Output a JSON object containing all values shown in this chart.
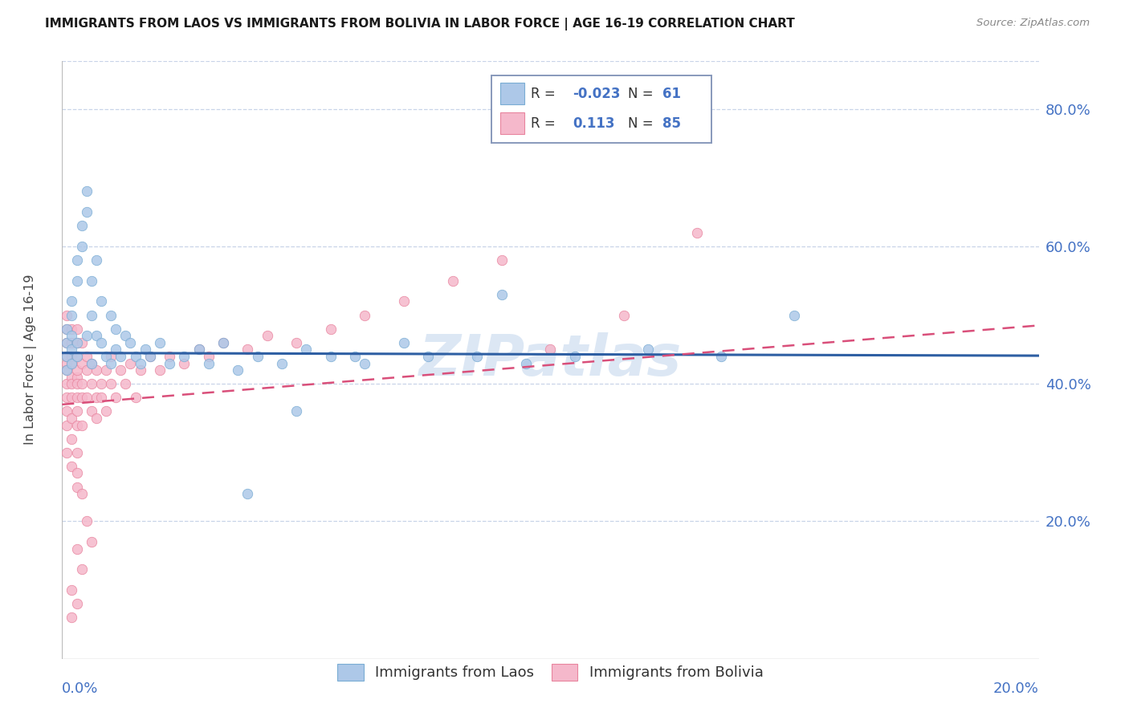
{
  "title": "IMMIGRANTS FROM LAOS VS IMMIGRANTS FROM BOLIVIA IN LABOR FORCE | AGE 16-19 CORRELATION CHART",
  "source": "Source: ZipAtlas.com",
  "ylabel": "In Labor Force | Age 16-19",
  "R1": -0.023,
  "N1": 61,
  "R2": 0.113,
  "N2": 85,
  "color_laos_fill": "#adc8e8",
  "color_laos_edge": "#7aadd4",
  "color_bolivia_fill": "#f5b8cb",
  "color_bolivia_edge": "#e8849e",
  "color_trend_laos": "#2e5fa3",
  "color_trend_bolivia": "#d94f7a",
  "watermark_color": "#c5d8ee",
  "background_color": "#ffffff",
  "grid_color": "#c8d4e8",
  "axis_label_color": "#4472c4",
  "legend_label1": "Immigrants from Laos",
  "legend_label2": "Immigrants from Bolivia",
  "xmin": 0.0,
  "xmax": 0.2,
  "ymin": 0.0,
  "ymax": 0.87,
  "right_yticks": [
    0.2,
    0.4,
    0.6,
    0.8
  ],
  "right_yticklabels": [
    "20.0%",
    "40.0%",
    "60.0%",
    "80.0%"
  ],
  "trend_laos_x0": 0.0,
  "trend_laos_x1": 0.2,
  "trend_laos_y0": 0.445,
  "trend_laos_y1": 0.441,
  "trend_bolivia_x0": 0.0,
  "trend_bolivia_x1": 0.2,
  "trend_bolivia_y0": 0.37,
  "trend_bolivia_y1": 0.485,
  "laos_x": [
    0.001,
    0.001,
    0.001,
    0.001,
    0.002,
    0.002,
    0.002,
    0.002,
    0.002,
    0.003,
    0.003,
    0.003,
    0.003,
    0.004,
    0.004,
    0.005,
    0.005,
    0.005,
    0.006,
    0.006,
    0.006,
    0.007,
    0.007,
    0.008,
    0.008,
    0.009,
    0.01,
    0.01,
    0.011,
    0.011,
    0.012,
    0.013,
    0.014,
    0.015,
    0.016,
    0.017,
    0.018,
    0.02,
    0.022,
    0.025,
    0.028,
    0.03,
    0.033,
    0.036,
    0.04,
    0.045,
    0.05,
    0.055,
    0.062,
    0.07,
    0.075,
    0.085,
    0.095,
    0.105,
    0.12,
    0.135,
    0.15,
    0.09,
    0.06,
    0.048,
    0.038
  ],
  "laos_y": [
    0.44,
    0.46,
    0.42,
    0.48,
    0.5,
    0.43,
    0.47,
    0.45,
    0.52,
    0.44,
    0.55,
    0.58,
    0.46,
    0.6,
    0.63,
    0.47,
    0.65,
    0.68,
    0.5,
    0.55,
    0.43,
    0.58,
    0.47,
    0.52,
    0.46,
    0.44,
    0.5,
    0.43,
    0.48,
    0.45,
    0.44,
    0.47,
    0.46,
    0.44,
    0.43,
    0.45,
    0.44,
    0.46,
    0.43,
    0.44,
    0.45,
    0.43,
    0.46,
    0.42,
    0.44,
    0.43,
    0.45,
    0.44,
    0.43,
    0.46,
    0.44,
    0.44,
    0.43,
    0.44,
    0.45,
    0.44,
    0.5,
    0.53,
    0.44,
    0.36,
    0.24
  ],
  "bolivia_x": [
    0.001,
    0.001,
    0.001,
    0.001,
    0.001,
    0.001,
    0.001,
    0.001,
    0.001,
    0.001,
    0.001,
    0.002,
    0.002,
    0.002,
    0.002,
    0.002,
    0.002,
    0.002,
    0.002,
    0.002,
    0.002,
    0.003,
    0.003,
    0.003,
    0.003,
    0.003,
    0.003,
    0.003,
    0.003,
    0.003,
    0.003,
    0.003,
    0.003,
    0.004,
    0.004,
    0.004,
    0.004,
    0.004,
    0.005,
    0.005,
    0.005,
    0.006,
    0.006,
    0.006,
    0.007,
    0.007,
    0.007,
    0.008,
    0.008,
    0.009,
    0.009,
    0.01,
    0.01,
    0.011,
    0.012,
    0.013,
    0.014,
    0.015,
    0.016,
    0.018,
    0.02,
    0.022,
    0.025,
    0.028,
    0.03,
    0.033,
    0.038,
    0.042,
    0.048,
    0.055,
    0.062,
    0.07,
    0.08,
    0.09,
    0.1,
    0.115,
    0.13,
    0.002,
    0.003,
    0.004,
    0.003,
    0.005,
    0.006,
    0.002,
    0.004
  ],
  "bolivia_y": [
    0.43,
    0.4,
    0.46,
    0.38,
    0.44,
    0.42,
    0.36,
    0.34,
    0.48,
    0.5,
    0.3,
    0.44,
    0.41,
    0.38,
    0.46,
    0.43,
    0.4,
    0.35,
    0.48,
    0.32,
    0.28,
    0.44,
    0.41,
    0.38,
    0.46,
    0.36,
    0.4,
    0.34,
    0.42,
    0.3,
    0.27,
    0.25,
    0.48,
    0.4,
    0.43,
    0.38,
    0.46,
    0.34,
    0.42,
    0.38,
    0.44,
    0.4,
    0.36,
    0.43,
    0.38,
    0.42,
    0.35,
    0.4,
    0.38,
    0.42,
    0.36,
    0.4,
    0.44,
    0.38,
    0.42,
    0.4,
    0.43,
    0.38,
    0.42,
    0.44,
    0.42,
    0.44,
    0.43,
    0.45,
    0.44,
    0.46,
    0.45,
    0.47,
    0.46,
    0.48,
    0.5,
    0.52,
    0.55,
    0.58,
    0.45,
    0.5,
    0.62,
    0.1,
    0.08,
    0.13,
    0.16,
    0.2,
    0.17,
    0.06,
    0.24
  ]
}
